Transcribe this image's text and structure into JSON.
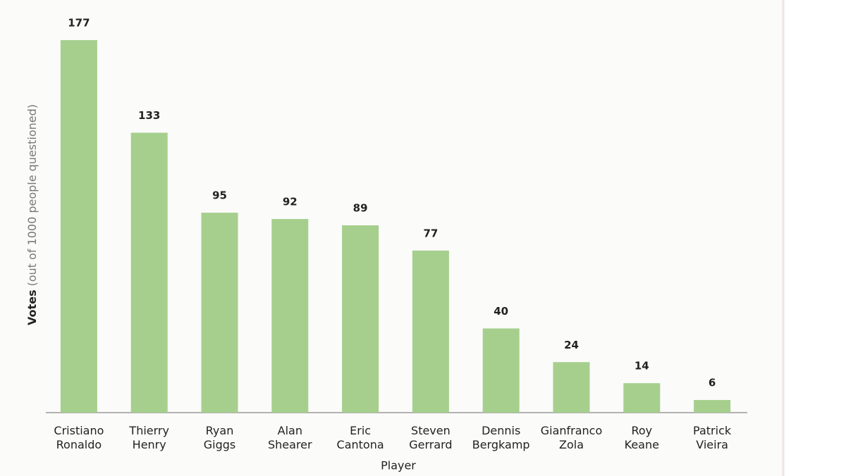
{
  "chart_data": {
    "type": "bar",
    "categories": [
      "Cristiano Ronaldo",
      "Thierry Henry",
      "Ryan Giggs",
      "Alan Shearer",
      "Eric Cantona",
      "Steven Gerrard",
      "Dennis Bergkamp",
      "Gianfranco Zola",
      "Roy Keane",
      "Patrick Vieira"
    ],
    "values": [
      177,
      133,
      95,
      92,
      89,
      77,
      40,
      24,
      14,
      6
    ],
    "color": "#a6cf8d",
    "ylim": [
      0,
      180
    ],
    "x_label": "Player",
    "y_label": "Votes",
    "y_label_note": "(out of 1000 people questioned)"
  }
}
